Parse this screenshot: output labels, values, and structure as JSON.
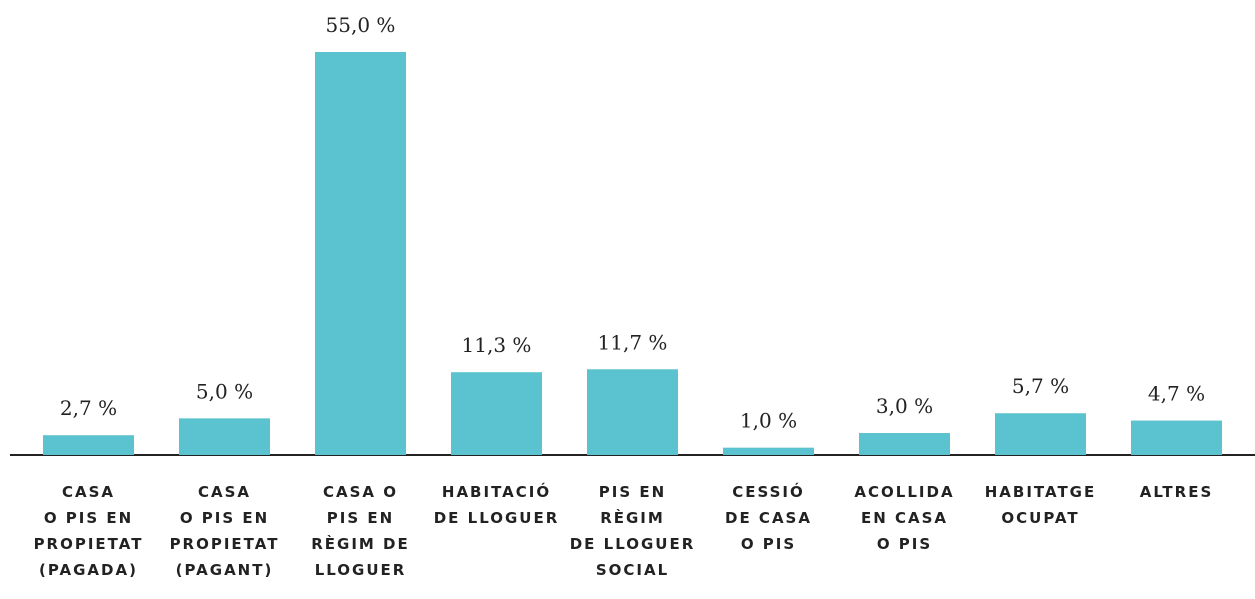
{
  "chart_data": {
    "type": "bar",
    "categories": [
      [
        "CASA",
        "O PIS EN",
        "PROPIETAT",
        "(PAGADA)"
      ],
      [
        "CASA",
        "O PIS EN",
        "PROPIETAT",
        "(PAGANT)"
      ],
      [
        "CASA O",
        "PIS EN",
        "RÈGIM DE",
        "LLOGUER"
      ],
      [
        "HABITACIÓ",
        "DE LLOGUER"
      ],
      [
        "PIS EN",
        "RÈGIM",
        "DE LLOGUER",
        "SOCIAL"
      ],
      [
        "CESSIÓ",
        "DE CASA",
        "O PIS"
      ],
      [
        "ACOLLIDA",
        "EN CASA",
        "O PIS"
      ],
      [
        "HABITATGE",
        "OCUPAT"
      ],
      [
        "ALTRES"
      ]
    ],
    "values": [
      2.7,
      5.0,
      55.0,
      11.3,
      11.7,
      1.0,
      3.0,
      5.7,
      4.7
    ],
    "value_labels": [
      "2,7 %",
      "5,0 %",
      "55,0 %",
      "11,3 %",
      "11,7 %",
      "1,0 %",
      "3,0 %",
      "5,7 %",
      "4,7 %"
    ],
    "color": "#5bc2cf",
    "ylim": [
      0,
      55
    ]
  }
}
